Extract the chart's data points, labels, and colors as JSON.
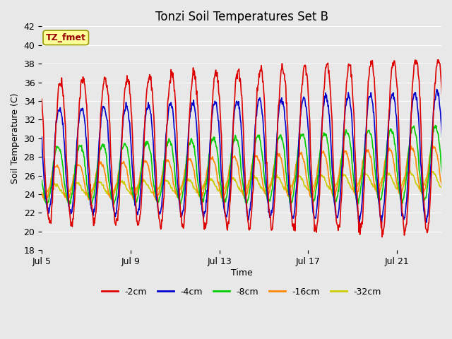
{
  "title": "Tonzi Soil Temperatures Set B",
  "xlabel": "Time",
  "ylabel": "Soil Temperature (C)",
  "ylim": [
    18,
    42
  ],
  "yticks": [
    18,
    20,
    22,
    24,
    26,
    28,
    30,
    32,
    34,
    36,
    38,
    40,
    42
  ],
  "xtick_labels": [
    "Jul 5",
    "Jul 9",
    "Jul 13",
    "Jul 17",
    "Jul 21"
  ],
  "xtick_positions": [
    0,
    4,
    8,
    12,
    16
  ],
  "annotation_text": "TZ_fmet",
  "annotation_color": "#990000",
  "annotation_bg": "#ffff99",
  "annotation_border": "#999900",
  "background_color": "#e8e8e8",
  "grid_color": "#ffffff",
  "series_colors": [
    "#dd0000",
    "#0000cc",
    "#00cc00",
    "#ff8800",
    "#cccc00"
  ],
  "series_lw": 1.2,
  "legend_entries": [
    "-2cm",
    "-4cm",
    "-8cm",
    "-16cm",
    "-32cm"
  ],
  "legend_colors": [
    "#dd0000",
    "#0000cc",
    "#00cc00",
    "#ff8800",
    "#cccc00"
  ],
  "n_days": 19,
  "figsize": [
    6.4,
    4.8
  ],
  "dpi": 100
}
